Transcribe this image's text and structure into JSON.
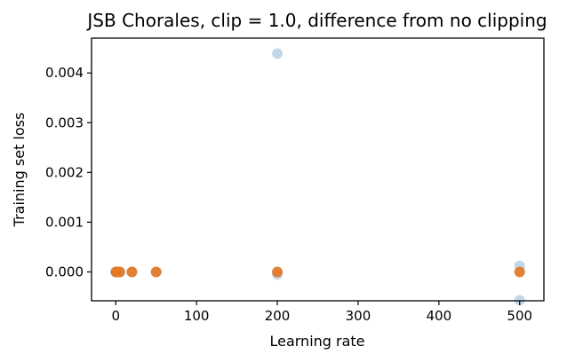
{
  "chart_data": {
    "type": "scatter",
    "title": "JSB Chorales, clip = 1.0, difference from no clipping",
    "xlabel": "Learning rate",
    "ylabel": "Training set loss",
    "xlim": [
      -30,
      530
    ],
    "ylim": [
      -0.00058,
      0.0047
    ],
    "xticks": [
      0,
      100,
      200,
      300,
      400,
      500
    ],
    "xtick_labels": [
      "0",
      "100",
      "200",
      "300",
      "400",
      "500"
    ],
    "yticks": [
      0.0,
      0.001,
      0.002,
      0.003,
      0.004
    ],
    "ytick_labels": [
      "0.000",
      "0.001",
      "0.002",
      "0.003",
      "0.004"
    ],
    "grid": false,
    "series": [
      {
        "color": "#a6c8e3",
        "opacity": 0.7,
        "points": [
          {
            "x": 0.1,
            "y": 0.0
          },
          {
            "x": 1,
            "y": 0.0
          },
          {
            "x": 2,
            "y": 0.0
          },
          {
            "x": 5,
            "y": 0.0
          },
          {
            "x": 20,
            "y": 0.0
          },
          {
            "x": 50,
            "y": 0.0
          },
          {
            "x": 200,
            "y": 0.00439
          },
          {
            "x": 200,
            "y": -5e-05
          },
          {
            "x": 500,
            "y": 0.00012
          },
          {
            "x": 500,
            "y": -0.00057
          }
        ]
      },
      {
        "color": "#e07b2c",
        "opacity": 0.95,
        "points": [
          {
            "x": 0.1,
            "y": 0.0
          },
          {
            "x": 1,
            "y": 0.0
          },
          {
            "x": 2,
            "y": 0.0
          },
          {
            "x": 5,
            "y": 0.0
          },
          {
            "x": 20,
            "y": 0.0
          },
          {
            "x": 50,
            "y": 0.0
          },
          {
            "x": 200,
            "y": 0.0
          },
          {
            "x": 500,
            "y": 0.0
          }
        ]
      }
    ]
  }
}
